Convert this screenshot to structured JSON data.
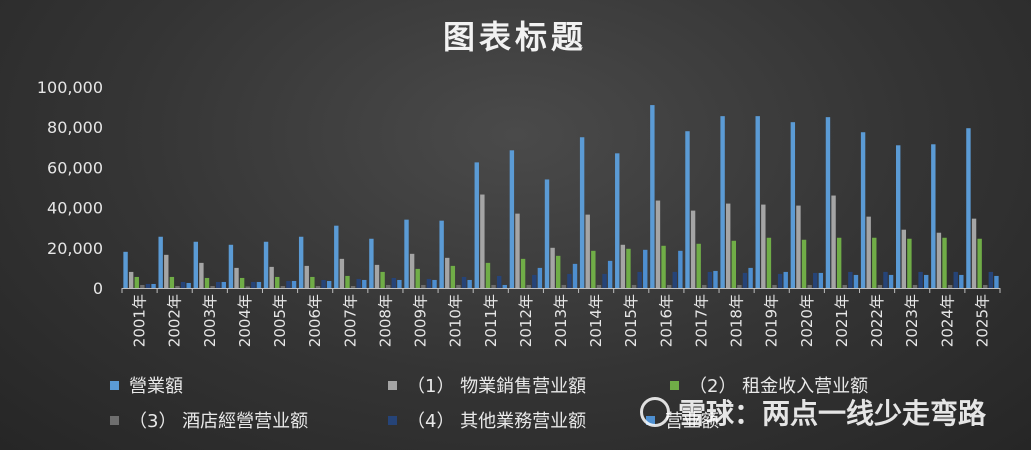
{
  "chart_data": {
    "type": "bar",
    "title": "图表标题",
    "xlabel": "",
    "ylabel": "",
    "ylim": [
      0,
      100000
    ],
    "yticks": [
      "0",
      "20,000",
      "40,000",
      "60,000",
      "80,000",
      "100,000"
    ],
    "grid": false,
    "legend_position": "bottom",
    "categories": [
      "2001年",
      "2002年",
      "2003年",
      "2004年",
      "2005年",
      "2006年",
      "2007年",
      "2008年",
      "2009年",
      "2010年",
      "2011年",
      "2012年",
      "2013年",
      "2014年",
      "2015年",
      "2016年",
      "2017年",
      "2018年",
      "2019年",
      "2020年",
      "2021年",
      "2022年",
      "2023年",
      "2024年",
      "2025年"
    ],
    "series": [
      {
        "name": "營業額",
        "color": "#5b9bd5",
        "values": [
          18000,
          25500,
          23000,
          21500,
          23000,
          25500,
          31000,
          24500,
          34000,
          33500,
          62500,
          68500,
          54000,
          75000,
          67000,
          91000,
          78000,
          85500,
          85500,
          82500,
          85000,
          77500,
          71000,
          71500,
          79500
        ]
      },
      {
        "name": "（1） 物業銷售营业額",
        "color": "#a5a5a5",
        "values": [
          8000,
          16500,
          12500,
          10000,
          10500,
          11000,
          14500,
          11500,
          17000,
          15000,
          46500,
          37000,
          20000,
          36500,
          21500,
          43500,
          38500,
          42000,
          41500,
          41000,
          46000,
          35500,
          29000,
          27500,
          34500
        ]
      },
      {
        "name": "（2） 租金收入营业额",
        "color": "#70ad47",
        "values": [
          5500,
          5500,
          5000,
          5000,
          5500,
          5500,
          6000,
          8000,
          9500,
          11000,
          12500,
          14500,
          16000,
          18500,
          19500,
          21000,
          22000,
          23500,
          25000,
          24000,
          25000,
          25000,
          24500,
          25000,
          24500
        ]
      },
      {
        "name": "（3） 酒店經營营业额",
        "color": "#6e6e6e",
        "values": [
          1500,
          1000,
          1000,
          800,
          1000,
          1000,
          1000,
          1500,
          1500,
          1500,
          1500,
          1500,
          1500,
          1500,
          1500,
          1500,
          1500,
          1500,
          1500,
          1500,
          1500,
          1500,
          1500,
          1500,
          1500
        ]
      },
      {
        "name": "（4） 其他業務营业额",
        "color": "#264478",
        "values": [
          2000,
          3000,
          3000,
          3000,
          3500,
          4000,
          4500,
          5000,
          4500,
          5500,
          6000,
          6500,
          7000,
          7000,
          8000,
          8000,
          8000,
          7500,
          7000,
          7500,
          8000,
          8000,
          8000,
          8000,
          8000
        ]
      },
      {
        "name": "营业额",
        "color": "#4e8fd0",
        "values": [
          2000,
          2500,
          3000,
          3000,
          3500,
          3500,
          4000,
          4000,
          4000,
          4000,
          1500,
          10000,
          12000,
          13500,
          19000,
          18500,
          8500,
          10000,
          8000,
          7500,
          6500,
          6500,
          6500,
          6500,
          6000
        ]
      }
    ]
  },
  "legend": [
    {
      "label": "營業額",
      "color": "#5b9bd5"
    },
    {
      "label": "（1） 物業銷售营业額",
      "color": "#a5a5a5"
    },
    {
      "label": "（2） 租金收入营业额",
      "color": "#70ad47"
    },
    {
      "label": "（3） 酒店經營营业额",
      "color": "#6e6e6e"
    },
    {
      "label": "（4） 其他業務营业额",
      "color": "#264478"
    },
    {
      "label": "营业额",
      "color": "#4e8fd0"
    }
  ],
  "watermark": "雪球：两点一线少走弯路"
}
